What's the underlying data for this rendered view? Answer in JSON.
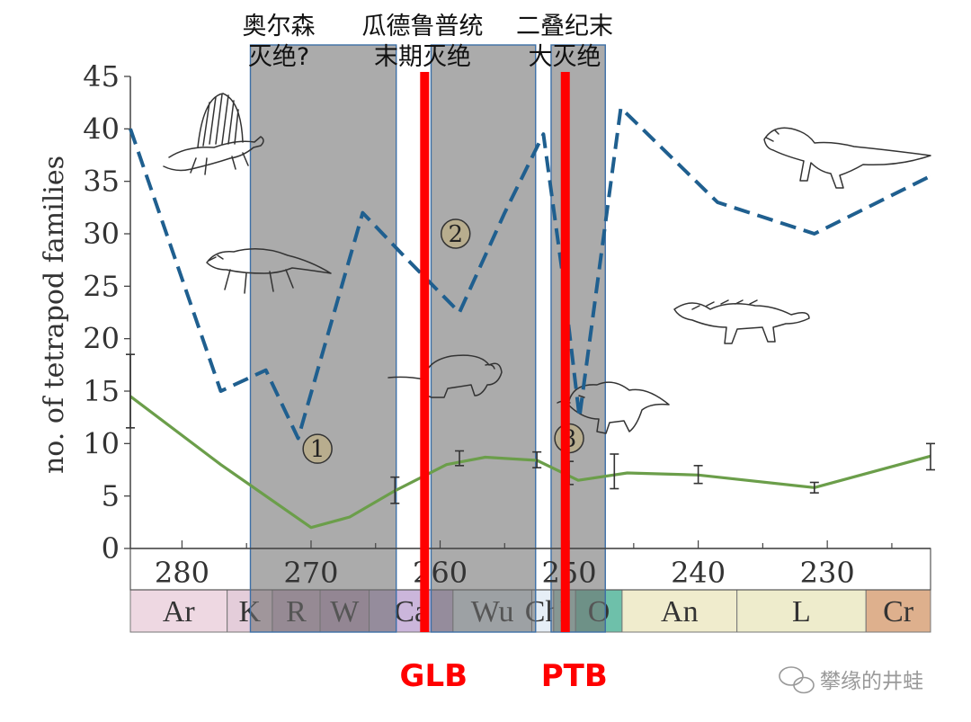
{
  "chart_data": {
    "type": "line",
    "ylabel": "no. of tetrapod families",
    "x_axis": {
      "range_ma": [
        284,
        222
      ],
      "ticks": [
        280,
        270,
        260,
        250,
        240,
        230
      ],
      "reversed": true
    },
    "y_axis": {
      "range": [
        0,
        45
      ],
      "ticks": [
        0,
        5,
        10,
        15,
        20,
        25,
        30,
        35,
        40,
        45
      ]
    },
    "grid": false,
    "series": [
      {
        "style": "dashed",
        "color": "#1f5f8f",
        "points": [
          [
            284,
            40
          ],
          [
            277,
            15
          ],
          [
            273.5,
            17
          ],
          [
            271,
            10.5
          ],
          [
            266,
            32
          ],
          [
            262.5,
            27.5
          ],
          [
            258.5,
            22.5
          ],
          [
            255,
            32
          ],
          [
            252,
            39.5
          ],
          [
            250.5,
            26
          ],
          [
            249.2,
            12.5
          ],
          [
            246,
            42
          ],
          [
            238.5,
            33
          ],
          [
            231,
            30
          ],
          [
            222,
            35.5
          ]
        ]
      },
      {
        "style": "solid",
        "color": "#6b9e4a",
        "points": [
          [
            284,
            14.5
          ],
          [
            277,
            8
          ],
          [
            270,
            2
          ],
          [
            267,
            3
          ],
          [
            263.5,
            5.5
          ],
          [
            259.5,
            8
          ],
          [
            256.5,
            8.7
          ],
          [
            252.5,
            8.4
          ],
          [
            249.3,
            6.5
          ],
          [
            245.5,
            7.2
          ],
          [
            240,
            7
          ],
          [
            231,
            5.8
          ],
          [
            222,
            8.8
          ]
        ],
        "error_bars": [
          [
            284,
            11.5,
            18.5
          ],
          [
            263.5,
            4.3,
            6.8
          ],
          [
            258.5,
            7.9,
            9.3
          ],
          [
            252.5,
            7.7,
            9.2
          ],
          [
            250,
            6.1,
            8.3
          ],
          [
            246.5,
            5.7,
            9.0
          ],
          [
            240,
            6.2,
            7.9
          ],
          [
            231,
            5.3,
            6.3
          ],
          [
            222,
            7.5,
            10
          ]
        ]
      }
    ],
    "shaded_intervals": [
      {
        "from": 274.7,
        "to": 263.4,
        "label_lines": [
          "奥尔森",
          "灭绝?"
        ]
      },
      {
        "from": 260.7,
        "to": 252.6,
        "label_lines": [
          "瓜德鲁普统",
          "末期灭绝"
        ]
      },
      {
        "from": 251.4,
        "to": 247.2,
        "label_lines": [
          "二叠纪末",
          "大灭绝"
        ]
      }
    ],
    "events": [
      {
        "x": 261.2,
        "label": "GLB",
        "color": "#ff0000"
      },
      {
        "x": 250.3,
        "label": "PTB",
        "color": "#ff0000"
      }
    ],
    "numbered_markers": [
      {
        "label": "1",
        "x": 269.5,
        "y": 9.5
      },
      {
        "label": "2",
        "x": 258.8,
        "y": 30
      },
      {
        "label": "3",
        "x": 250,
        "y": 10.5
      }
    ],
    "stages": [
      {
        "label": "Ar",
        "from": 284,
        "to": 276.5,
        "color": "#eed8e2"
      },
      {
        "label": "K",
        "from": 276.5,
        "to": 273,
        "color": "#e4cdda"
      },
      {
        "label": "R",
        "from": 273,
        "to": 269.3,
        "color": "#cdb0c8"
      },
      {
        "label": "W",
        "from": 269.3,
        "to": 265.5,
        "color": "#c5a8c5"
      },
      {
        "label": "Ca",
        "from": 265.5,
        "to": 259,
        "color": "#cbb6db"
      },
      {
        "label": "Wu",
        "from": 259,
        "to": 252.9,
        "color": "#dde6ee"
      },
      {
        "label": "Ch",
        "from": 252.9,
        "to": 251.2,
        "color": "#e6eef6"
      },
      {
        "label": "I",
        "from": 251.2,
        "to": 249.5,
        "color": "#a9cfc7"
      },
      {
        "label": "O",
        "from": 249.5,
        "to": 245.9,
        "color": "#6ec0aa"
      },
      {
        "label": "An",
        "from": 245.9,
        "to": 237,
        "color": "#f0eccd"
      },
      {
        "label": "L",
        "from": 237,
        "to": 227,
        "color": "#eeeccc"
      },
      {
        "label": "Cr",
        "from": 227,
        "to": 222,
        "color": "#deb08d"
      }
    ]
  },
  "watermark": "攀缘的井蛙"
}
